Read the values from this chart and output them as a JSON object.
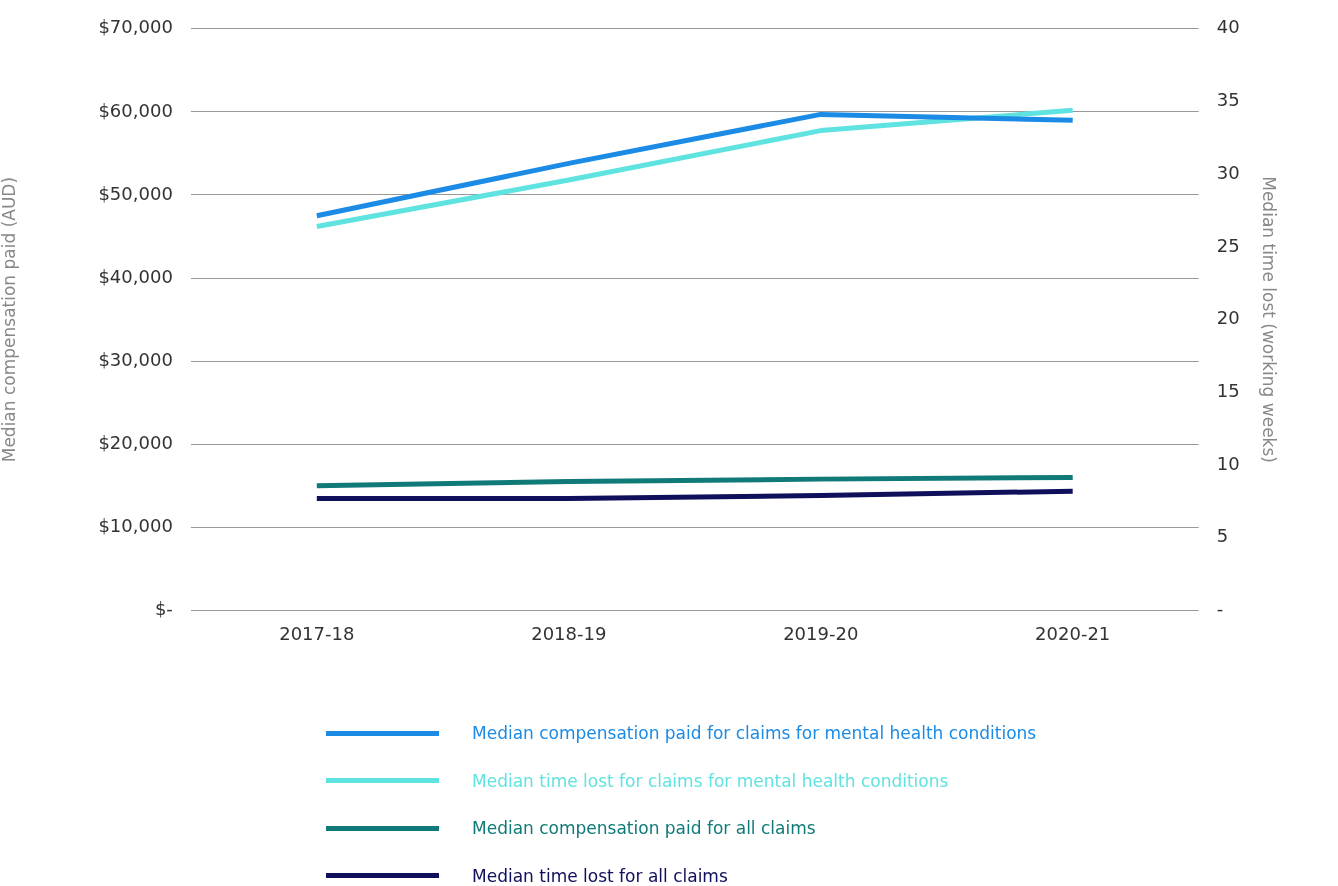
{
  "chart_data": {
    "type": "line",
    "ylabel": "Median compensation paid (AUD)",
    "y2label": "Median time lost (working weeks)",
    "categories": [
      "2017-18",
      "2018-19",
      "2019-20",
      "2020-21"
    ],
    "series": [
      {
        "name": "Median compensation paid for claims for mental health conditions",
        "color": "#1b8be6",
        "values": [
          47500,
          53800,
          59700,
          59000
        ]
      },
      {
        "name": "Median time lost for claims for mental health conditions",
        "color": "#5fe3e0",
        "values": [
          26.4,
          29.6,
          33,
          34.4
        ],
        "axis": "y2"
      },
      {
        "name": "Median compensation paid for all claims",
        "color": "#107a78",
        "values": [
          15000,
          15500,
          15800,
          16000
        ]
      },
      {
        "name": "Median time lost for all claims",
        "color": "#0f0f5c",
        "values": [
          7.7,
          7.7,
          7.9,
          8.2
        ],
        "axis": "y2"
      }
    ],
    "ylim": [
      0,
      70000
    ],
    "yticks": [
      {
        "value": 0,
        "label": "$-"
      },
      {
        "value": 10000,
        "label": "$10,000"
      },
      {
        "value": 20000,
        "label": "$20,000"
      },
      {
        "value": 30000,
        "label": "$30,000"
      },
      {
        "value": 40000,
        "label": "$40,000"
      },
      {
        "value": 50000,
        "label": "$50,000"
      },
      {
        "value": 60000,
        "label": "$60,000"
      },
      {
        "value": 70000,
        "label": "$70,000"
      }
    ],
    "y2lim": [
      0,
      40
    ],
    "y2ticks": [
      {
        "value": 0,
        "label": "-"
      },
      5,
      10,
      15,
      20,
      25,
      30,
      35,
      40
    ],
    "grid": "y",
    "legend": "bottom",
    "marker": "none",
    "line_style": "solid"
  }
}
